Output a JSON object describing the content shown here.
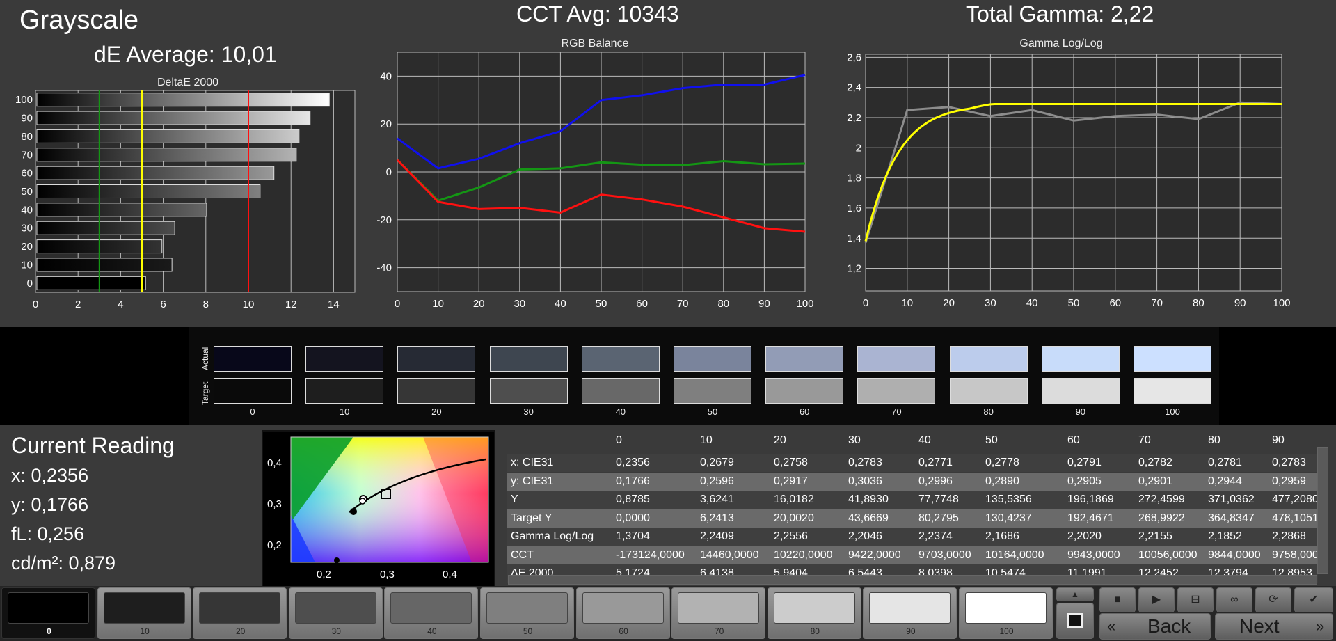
{
  "header": {
    "title": "Grayscale",
    "de_average": "dE Average: 10,01",
    "cct_avg": "CCT Avg: 10343",
    "total_gamma": "Total Gamma: 2,22"
  },
  "colors": {
    "background": "#3a3a3a",
    "plot_bg": "#2c2c2c",
    "grid": "#bbbbbb",
    "red": "#ff1010",
    "green": "#149614",
    "blue": "#1010ee",
    "yellow": "#ffff00",
    "measured_gamma": "#8c8c8c"
  },
  "chart_data": [
    {
      "type": "bar",
      "orientation": "horizontal",
      "title": "DeltaE 2000",
      "categories": [
        "0",
        "10",
        "20",
        "30",
        "40",
        "50",
        "60",
        "70",
        "80",
        "90",
        "100"
      ],
      "values": [
        5.17,
        6.41,
        5.94,
        6.54,
        8.04,
        10.55,
        11.2,
        12.25,
        12.38,
        12.9,
        13.8
      ],
      "xlim": [
        0,
        15
      ],
      "x_ticks": [
        "0",
        "2",
        "4",
        "6",
        "8",
        "10",
        "12",
        "14"
      ],
      "threshold_lines": [
        {
          "value": 3,
          "color": "#149614"
        },
        {
          "value": 5,
          "color": "#ffff00"
        },
        {
          "value": 10,
          "color": "#ff1010"
        }
      ]
    },
    {
      "type": "line",
      "title": "RGB Balance",
      "x": [
        0,
        10,
        20,
        30,
        40,
        50,
        60,
        70,
        80,
        90,
        100
      ],
      "x_ticks": [
        "0",
        "10",
        "20",
        "30",
        "40",
        "50",
        "60",
        "70",
        "80",
        "90",
        "100"
      ],
      "y_ticks": [
        "40",
        "20",
        "0",
        "-20",
        "-40"
      ],
      "ylim": [
        -50,
        50
      ],
      "series": [
        {
          "color": "#1010ee",
          "values": [
            14,
            1.5,
            5.5,
            12,
            17,
            30,
            32,
            35,
            36.5,
            36.5,
            40.5
          ]
        },
        {
          "color": "#149614",
          "values": [
            5,
            -12,
            -6.5,
            1,
            1.5,
            4,
            3,
            2.8,
            4.5,
            3.2,
            3.5
          ]
        },
        {
          "color": "#ff1010",
          "values": [
            5,
            -12.5,
            -15.5,
            -15,
            -17,
            -9.5,
            -11.5,
            -14.5,
            -19,
            -23.5,
            -25
          ]
        }
      ]
    },
    {
      "type": "line",
      "title": "Gamma Log/Log",
      "x_ticks": [
        "0",
        "10",
        "20",
        "30",
        "40",
        "50",
        "60",
        "70",
        "80",
        "90",
        "100"
      ],
      "y_ticks": [
        "2,6",
        "2,4",
        "2,2",
        "2",
        "1,8",
        "1,6",
        "1,4",
        "1,2"
      ],
      "ylim": [
        1.05,
        2.62
      ],
      "series": [
        {
          "color": "#8c8c8c",
          "x": [
            0,
            10,
            20,
            30,
            40,
            50,
            60,
            70,
            80,
            90,
            100
          ],
          "values": [
            1.37,
            2.25,
            2.27,
            2.21,
            2.25,
            2.18,
            2.21,
            2.22,
            2.19,
            2.3,
            2.29
          ]
        },
        {
          "color": "#ffff00",
          "curve": "target",
          "target_gamma": 2.4
        }
      ]
    }
  ],
  "swatches": {
    "row_actual_label": "Actual",
    "row_target_label": "Target",
    "labels": [
      "0",
      "10",
      "20",
      "30",
      "40",
      "50",
      "60",
      "70",
      "80",
      "90",
      "100"
    ],
    "actual_colors": [
      "#08081a",
      "#14141f",
      "#262a34",
      "#3e4650",
      "#5a6472",
      "#7a849c",
      "#929cb6",
      "#aab4d2",
      "#bcccec",
      "#c8dcfa",
      "#cce0ff"
    ],
    "target_colors": [
      "#0a0a0a",
      "#1e1e1e",
      "#363636",
      "#4e4e4e",
      "#686868",
      "#7f7f7f",
      "#999999",
      "#afafaf",
      "#c7c7c7",
      "#dcdcdc",
      "#e6e6e6"
    ]
  },
  "reading": {
    "title": "Current Reading",
    "x": "x: 0,2356",
    "y": "y: 0,1766",
    "fl": "fL: 0,256",
    "cdm2": "cd/m²: 0,879"
  },
  "cie": {
    "x_ticks": [
      "0,2",
      "0,3",
      "0,4"
    ],
    "y_ticks": [
      "0,4",
      "0,3",
      "0,2"
    ]
  },
  "table": {
    "columns": [
      "0",
      "10",
      "20",
      "30",
      "40",
      "50",
      "60",
      "70",
      "80",
      "90"
    ],
    "rows": [
      {
        "label": "x: CIE31",
        "values": [
          "0,2356",
          "0,2679",
          "0,2758",
          "0,2783",
          "0,2771",
          "0,2778",
          "0,2791",
          "0,2782",
          "0,2781",
          "0,2783"
        ]
      },
      {
        "label": "y: CIE31",
        "values": [
          "0,1766",
          "0,2596",
          "0,2917",
          "0,3036",
          "0,2996",
          "0,2890",
          "0,2905",
          "0,2901",
          "0,2944",
          "0,2959"
        ]
      },
      {
        "label": "Y",
        "values": [
          "0,8785",
          "3,6241",
          "16,0182",
          "41,8930",
          "77,7748",
          "135,5356",
          "196,1869",
          "272,4599",
          "371,0362",
          "477,2080"
        ]
      },
      {
        "label": "Target Y",
        "values": [
          "0,0000",
          "6,2413",
          "20,0020",
          "43,6669",
          "80,2795",
          "130,4237",
          "192,4671",
          "268,9922",
          "364,8347",
          "478,1051"
        ]
      },
      {
        "label": "Gamma Log/Log",
        "values": [
          "1,3704",
          "2,2409",
          "2,2556",
          "2,2046",
          "2,2374",
          "2,1686",
          "2,2020",
          "2,2155",
          "2,1852",
          "2,2868"
        ]
      },
      {
        "label": "CCT",
        "values": [
          "-173124,0000",
          "14460,0000",
          "10220,0000",
          "9422,0000",
          "9703,0000",
          "10164,0000",
          "9943,0000",
          "10056,0000",
          "9844,0000",
          "9758,0000"
        ]
      },
      {
        "label": "ΔE 2000",
        "values": [
          "5,1724",
          "6,4138",
          "5,9404",
          "6,5443",
          "8,0398",
          "10,5474",
          "11,1991",
          "12,2452",
          "12,3794",
          "12,8953"
        ]
      }
    ]
  },
  "toolbar": {
    "patches": [
      {
        "label": "0",
        "color": "#000000"
      },
      {
        "label": "10",
        "color": "#1e1e1e"
      },
      {
        "label": "20",
        "color": "#363636"
      },
      {
        "label": "30",
        "color": "#4e4e4e"
      },
      {
        "label": "40",
        "color": "#666666"
      },
      {
        "label": "50",
        "color": "#7f7f7f"
      },
      {
        "label": "60",
        "color": "#999999"
      },
      {
        "label": "70",
        "color": "#b2b2b2"
      },
      {
        "label": "80",
        "color": "#cccccc"
      },
      {
        "label": "90",
        "color": "#e5e5e5"
      },
      {
        "label": "100",
        "color": "#ffffff"
      }
    ],
    "active_patch": "0",
    "back_label": "Back",
    "next_label": "Next",
    "controls": [
      "stop-icon",
      "play-icon",
      "measure-icon",
      "loop-icon",
      "refresh-icon",
      "check-icon"
    ]
  }
}
